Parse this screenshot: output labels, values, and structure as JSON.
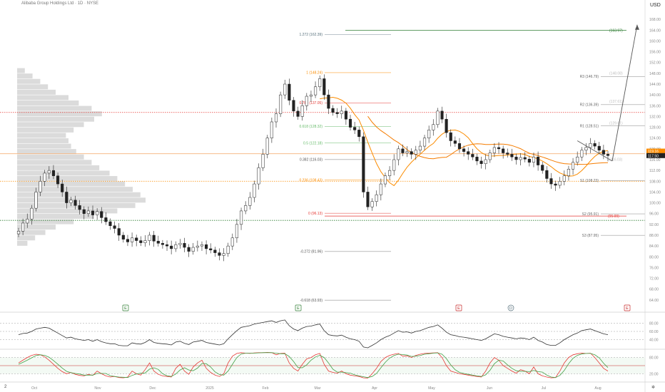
{
  "header": {
    "symbol_line": "Alibaba Group Holdings Ltd · 1D · NYSE",
    "currency": "USD",
    "tz_badge": "2",
    "tz_end": "✲"
  },
  "chart_data": {
    "type": "candlestick",
    "title": "",
    "price_axis": {
      "range": [
        60,
        172
      ],
      "ticks": [
        64,
        68,
        72,
        76,
        80,
        84,
        88,
        92,
        96,
        100,
        104,
        108,
        112,
        116,
        120,
        124,
        128,
        132,
        136,
        140,
        144,
        148,
        152,
        156,
        160,
        164,
        168
      ],
      "tick_labels": [
        "64.00",
        "68.00",
        "72.00",
        "76.00",
        "80.00",
        "84.00",
        "88.00",
        "92.00",
        "96.00",
        "100.00",
        "104.00",
        "108.00",
        "112.00",
        "116.00",
        "120.00",
        "124.00",
        "128.00",
        "132.00",
        "136.00",
        "140.00",
        "144.00",
        "148.00",
        "152.00",
        "156.00",
        "160.00",
        "164.00",
        "168.00"
      ],
      "last_price_label": "117.50",
      "alt_price_label": "119.16"
    },
    "time_axis": {
      "labels": [
        "Oct",
        "Nov",
        "Dec",
        "2025",
        "Feb",
        "Mar",
        "Apr",
        "May",
        "Jun",
        "Jul",
        "Aug"
      ]
    },
    "candles": {
      "closes": [
        89.5,
        92.5,
        94.0,
        98.0,
        104.0,
        108.0,
        111.0,
        112.0,
        110.0,
        107.0,
        104.0,
        100.0,
        101.0,
        99.0,
        97.5,
        96.0,
        97.0,
        95.5,
        96.8,
        94.5,
        93.0,
        91.5,
        90.5,
        88.0,
        86.5,
        85.5,
        87.0,
        86.0,
        85.2,
        86.0,
        88.0,
        85.8,
        85.0,
        84.5,
        84.0,
        83.0,
        84.5,
        85.0,
        83.5,
        82.0,
        83.5,
        84.0,
        84.5,
        83.0,
        82.5,
        81.5,
        80.5,
        81.2,
        84.0,
        87.0,
        92.0,
        97.0,
        99.0,
        102.0,
        107.0,
        113.0,
        118.0,
        124.0,
        130.0,
        133.0,
        140.0,
        144.0,
        138.0,
        134.0,
        132.0,
        136.0,
        139.5,
        140.0,
        143.0,
        146.0,
        140.0,
        135.0,
        133.5,
        133.0,
        134.0,
        131.0,
        128.0,
        127.0,
        124.5,
        104.0,
        98.5,
        100.5,
        103.0,
        107.0,
        110.0,
        112.0,
        116.0,
        120.0,
        118.5,
        119.0,
        118.0,
        119.5,
        121.0,
        124.0,
        127.0,
        129.0,
        134.0,
        131.0,
        126.0,
        123.0,
        122.0,
        120.0,
        119.0,
        118.0,
        117.0,
        115.5,
        114.5,
        116.0,
        118.5,
        120.5,
        120.0,
        118.5,
        118.0,
        117.0,
        116.0,
        116.8,
        116.2,
        115.0,
        117.0,
        114.0,
        112.0,
        109.0,
        107.0,
        106.5,
        108.0,
        110.0,
        112.5,
        115.0,
        117.0,
        119.5,
        120.5,
        122.0,
        121.0,
        119.5,
        118.0,
        117.5
      ],
      "first_date": "Sep 2024",
      "last_date": "Aug 2025"
    },
    "volume_profile": {
      "price_levels": [
        84,
        86,
        88,
        90,
        92,
        94,
        96,
        98,
        100,
        102,
        104,
        106,
        108,
        110,
        112,
        114,
        116,
        118,
        120,
        122,
        124,
        126,
        128,
        130,
        132,
        134,
        136,
        138,
        140,
        142,
        144,
        146,
        148
      ],
      "volumes": [
        8,
        14,
        22,
        30,
        44,
        60,
        78,
        92,
        100,
        96,
        90,
        84,
        78,
        72,
        64,
        58,
        52,
        46,
        42,
        40,
        38,
        44,
        52,
        60,
        66,
        58,
        48,
        40,
        30,
        24,
        18,
        12,
        6
      ]
    },
    "fibonacci": [
      {
        "ratio_label": "1.272 (162.39)",
        "price": 162.39
      },
      {
        "ratio_label": "1 (148.24)",
        "price": 148.24
      },
      {
        "ratio_label": "0.786 (137.05)",
        "price": 137.05
      },
      {
        "ratio_label": "0.618 (128.32)",
        "price": 128.32
      },
      {
        "ratio_label": "0.5 (122.18)",
        "price": 122.18
      },
      {
        "ratio_label": "0.382 (116.03)",
        "price": 116.03
      },
      {
        "ratio_label": "0.236 (108.43)",
        "price": 108.43
      },
      {
        "ratio_label": "0 (96.13)",
        "price": 96.13
      },
      {
        "ratio_label": "-0.272 (81.96)",
        "price": 81.96
      },
      {
        "ratio_label": "-0.618 (63.93)",
        "price": 63.93
      }
    ],
    "pivots": [
      {
        "label": "R3 (146.79)",
        "price": 146.79
      },
      {
        "label": "R2 (136.39)",
        "price": 136.39
      },
      {
        "label": "R1 (128.51)",
        "price": 128.51
      },
      {
        "label": "S1 (108.23)",
        "price": 108.23
      },
      {
        "label": "S2 (95.91)",
        "price": 95.91
      },
      {
        "label": "S3 (87.95)",
        "price": 87.95
      }
    ],
    "pivot_ghost_labels": [
      "(148.08)",
      "(137.61)",
      "(129.61)",
      "(116.03)"
    ],
    "target_labels": [
      {
        "label": "(163.97)",
        "price": 163.97
      },
      {
        "label": "(95.09)",
        "price": 95.09
      }
    ],
    "levels": {
      "red_dotted": 133.5,
      "orange_dotted": 108.0,
      "green_dotted": 93.5,
      "orange_solid": 118.2
    },
    "event_markers": [
      {
        "label": "E",
        "color": "#2e7d32"
      },
      {
        "label": "E",
        "color": "#2e7d32"
      },
      {
        "label": "E",
        "color": "#c62828"
      },
      {
        "label": "D",
        "color": "#546e7a"
      },
      {
        "label": "E",
        "color": "#c62828"
      }
    ],
    "rsi": {
      "range": [
        20,
        100
      ],
      "tick_labels": [
        "80.00",
        "60.00",
        "40.00"
      ],
      "values": [
        52,
        55,
        56,
        60,
        66,
        68,
        70,
        68,
        62,
        56,
        50,
        44,
        46,
        42,
        40,
        38,
        40,
        36,
        40,
        35,
        32,
        30,
        30,
        26,
        25,
        25,
        32,
        30,
        29,
        33,
        40,
        33,
        31,
        30,
        29,
        27,
        34,
        36,
        31,
        28,
        34,
        36,
        38,
        33,
        31,
        29,
        27,
        30,
        42,
        52,
        62,
        70,
        72,
        74,
        78,
        80,
        82,
        84,
        86,
        82,
        86,
        88,
        74,
        66,
        62,
        68,
        72,
        73,
        76,
        78,
        62,
        52,
        50,
        49,
        51,
        46,
        42,
        40,
        36,
        22,
        20,
        26,
        32,
        40,
        46,
        50,
        56,
        62,
        58,
        59,
        56,
        60,
        62,
        66,
        70,
        72,
        76,
        68,
        58,
        52,
        50,
        47,
        46,
        44,
        42,
        40,
        38,
        42,
        48,
        54,
        52,
        48,
        46,
        44,
        42,
        44,
        43,
        40,
        46,
        38,
        34,
        28,
        26,
        26,
        32,
        40,
        46,
        52,
        56,
        62,
        64,
        66,
        62,
        58,
        54,
        52
      ]
    },
    "stochastic": {
      "range": [
        0,
        100
      ],
      "tick_labels": [
        "80.00",
        "20.00"
      ],
      "k_values": [
        60,
        70,
        80,
        88,
        92,
        90,
        82,
        70,
        55,
        40,
        28,
        20,
        25,
        18,
        14,
        12,
        18,
        14,
        30,
        20,
        12,
        8,
        10,
        6,
        5,
        8,
        30,
        20,
        15,
        35,
        60,
        30,
        18,
        12,
        10,
        8,
        40,
        55,
        30,
        18,
        45,
        60,
        70,
        40,
        25,
        15,
        10,
        20,
        60,
        85,
        95,
        98,
        96,
        95,
        97,
        98,
        98,
        99,
        98,
        90,
        95,
        96,
        60,
        40,
        30,
        55,
        75,
        80,
        90,
        95,
        55,
        30,
        25,
        22,
        30,
        20,
        15,
        12,
        10,
        5,
        4,
        20,
        40,
        65,
        80,
        88,
        92,
        95,
        85,
        86,
        80,
        88,
        92,
        95,
        96,
        97,
        98,
        80,
        50,
        30,
        25,
        20,
        18,
        15,
        12,
        10,
        8,
        30,
        60,
        80,
        70,
        50,
        40,
        30,
        22,
        35,
        30,
        20,
        45,
        20,
        12,
        8,
        5,
        6,
        30,
        60,
        80,
        90,
        94,
        96,
        95,
        96,
        80,
        60,
        40,
        30
      ],
      "d_values": [
        55,
        62,
        70,
        79,
        87,
        90,
        88,
        81,
        69,
        55,
        41,
        29,
        24,
        21,
        19,
        15,
        15,
        15,
        21,
        21,
        21,
        13,
        10,
        8,
        7,
        6,
        14,
        19,
        22,
        23,
        37,
        42,
        36,
        20,
        13,
        10,
        19,
        34,
        42,
        34,
        31,
        41,
        58,
        57,
        45,
        27,
        17,
        15,
        30,
        55,
        80,
        93,
        96,
        96,
        96,
        97,
        98,
        98,
        98,
        96,
        94,
        94,
        84,
        65,
        43,
        42,
        53,
        70,
        82,
        88,
        80,
        60,
        37,
        26,
        26,
        24,
        22,
        16,
        12,
        9,
        6,
        10,
        21,
        42,
        62,
        78,
        87,
        92,
        91,
        89,
        84,
        85,
        87,
        92,
        94,
        96,
        97,
        92,
        76,
        53,
        35,
        25,
        21,
        18,
        15,
        12,
        10,
        16,
        33,
        57,
        70,
        67,
        53,
        40,
        31,
        29,
        29,
        28,
        32,
        28,
        26,
        15,
        8,
        6,
        14,
        32,
        57,
        77,
        88,
        93,
        95,
        95,
        90,
        79,
        59,
        43
      ]
    }
  }
}
